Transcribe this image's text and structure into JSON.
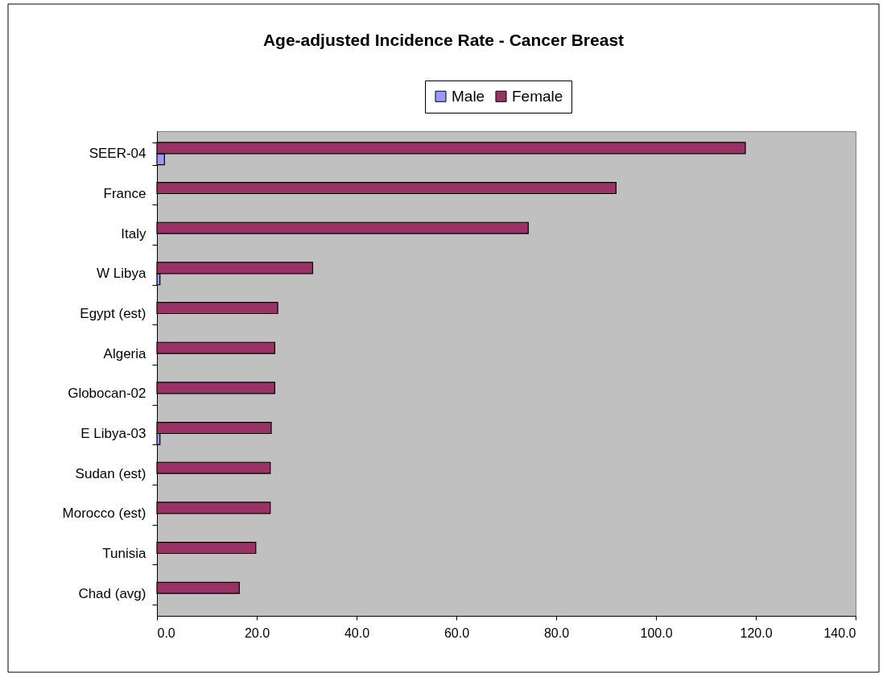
{
  "chart_data": {
    "type": "bar",
    "orientation": "horizontal",
    "title": "Age-adjusted Incidence Rate - Cancer Breast",
    "categories": [
      "SEER-04",
      "France",
      "Italy",
      "W Libya",
      "Egypt (est)",
      "Algeria",
      "Globocan-02",
      "E Libya-03",
      "Sudan (est)",
      "Morocco (est)",
      "Tunisia",
      "Chad (avg)"
    ],
    "series": [
      {
        "name": "Male",
        "color": "#9999ff",
        "values": [
          1.5,
          null,
          null,
          0.6,
          null,
          null,
          null,
          0.6,
          null,
          null,
          null,
          null
        ]
      },
      {
        "name": "Female",
        "color": "#993366",
        "values": [
          117.9,
          92.0,
          74.4,
          31.2,
          24.2,
          23.6,
          23.6,
          22.9,
          22.7,
          22.7,
          19.8,
          16.5
        ]
      }
    ],
    "xlim": [
      0,
      140
    ],
    "xticks": [
      {
        "value": 0,
        "label": "0.0"
      },
      {
        "value": 20,
        "label": "20.0"
      },
      {
        "value": 40,
        "label": "40.0"
      },
      {
        "value": 60,
        "label": "60.0"
      },
      {
        "value": 80,
        "label": "80.0"
      },
      {
        "value": 100,
        "label": "100.0"
      },
      {
        "value": 120,
        "label": "120.0"
      },
      {
        "value": 140,
        "label": "140.0"
      }
    ],
    "grid": false,
    "legend": "top"
  }
}
